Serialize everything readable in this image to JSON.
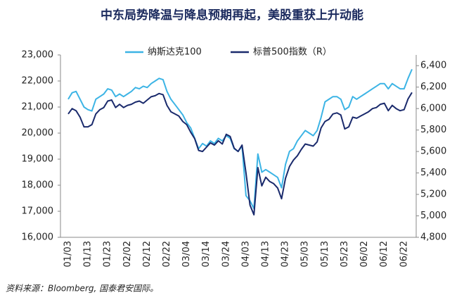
{
  "chart_data": {
    "type": "line",
    "title": "中东局势降温与降息预期再起，美股重获上升动能",
    "source": "资料来源：Bloomberg, 国泰君安国际。",
    "categories": [
      "01/03",
      null,
      null,
      null,
      null,
      "01/13",
      null,
      null,
      null,
      null,
      "01/23",
      null,
      null,
      null,
      null,
      "02/02",
      null,
      null,
      null,
      null,
      "02/12",
      null,
      null,
      null,
      null,
      "02/22",
      null,
      null,
      null,
      null,
      "03/04",
      null,
      null,
      null,
      null,
      "03/14",
      null,
      null,
      null,
      null,
      "03/24",
      null,
      null,
      null,
      null,
      "04/03",
      null,
      null,
      null,
      null,
      "04/13",
      null,
      null,
      null,
      null,
      "04/23",
      null,
      null,
      null,
      null,
      "05/03",
      null,
      null,
      null,
      null,
      "05/13",
      null,
      null,
      null,
      null,
      "05/23",
      null,
      null,
      null,
      null,
      "06/02",
      null,
      null,
      null,
      null,
      "06/12",
      null,
      null,
      null,
      null,
      "06/22",
      null,
      null
    ],
    "series": [
      {
        "name": "纳斯达克100",
        "color": "#3cb4e5",
        "values": [
          21300,
          21550,
          21600,
          21300,
          21000,
          20900,
          20850,
          21300,
          21400,
          21500,
          21700,
          21650,
          21400,
          21500,
          21400,
          21500,
          21600,
          21750,
          21700,
          21800,
          21750,
          21900,
          22000,
          22100,
          22050,
          21600,
          21300,
          21100,
          20900,
          20700,
          20400,
          20200,
          19800,
          19400,
          19600,
          19500,
          19700,
          19600,
          19800,
          19700,
          19900,
          19800,
          19400,
          19300,
          19500,
          17600,
          17400,
          17100,
          19200,
          18500,
          18600,
          18500,
          18400,
          18300,
          17900,
          18800,
          19300,
          19400,
          19700,
          19900,
          20100,
          20000,
          19900,
          20100,
          20600,
          21200,
          21300,
          21400,
          21400,
          21300,
          20900,
          21000,
          21400,
          21300,
          21400,
          21500,
          21600,
          21700,
          21800,
          21900,
          21900,
          21700,
          21900,
          21800,
          21700,
          21700,
          22100,
          22450
        ]
      },
      {
        "name": "标普500指数（R）",
        "color": "#1a2a6c",
        "axis": "y2",
        "values": [
          5950,
          6000,
          5980,
          5920,
          5830,
          5830,
          5850,
          5950,
          5990,
          6010,
          6070,
          6080,
          6010,
          6040,
          6010,
          6030,
          6040,
          6060,
          6070,
          6050,
          6080,
          6110,
          6120,
          6140,
          6130,
          6030,
          5970,
          5950,
          5930,
          5880,
          5850,
          5780,
          5720,
          5610,
          5600,
          5640,
          5680,
          5660,
          5700,
          5670,
          5760,
          5740,
          5630,
          5600,
          5660,
          5400,
          5100,
          5010,
          5450,
          5280,
          5360,
          5320,
          5300,
          5260,
          5160,
          5350,
          5460,
          5520,
          5560,
          5620,
          5670,
          5660,
          5650,
          5690,
          5820,
          5880,
          5900,
          5950,
          5960,
          5940,
          5810,
          5830,
          5920,
          5910,
          5930,
          5950,
          5970,
          6000,
          6010,
          6040,
          6050,
          5980,
          6030,
          6000,
          5980,
          5990,
          6090,
          6150
        ]
      }
    ],
    "ylim": [
      16000,
      23000
    ],
    "yticks": [
      {
        "value": 16000,
        "label": "16,000"
      },
      {
        "value": 17000,
        "label": "17,000"
      },
      {
        "value": 18000,
        "label": "18,000"
      },
      {
        "value": 19000,
        "label": "19,000"
      },
      {
        "value": 20000,
        "label": "20,000"
      },
      {
        "value": 21000,
        "label": "21,000"
      },
      {
        "value": 22000,
        "label": "22,000"
      },
      {
        "value": 23000,
        "label": "23,000"
      }
    ],
    "y2lim": [
      4800,
      6500
    ],
    "y2ticks": [
      {
        "value": 4800,
        "label": "4,800"
      },
      {
        "value": 5000,
        "label": "5,000"
      },
      {
        "value": 5200,
        "label": "5,200"
      },
      {
        "value": 5400,
        "label": "5,400"
      },
      {
        "value": 5600,
        "label": "5,600"
      },
      {
        "value": 5800,
        "label": "5,800"
      },
      {
        "value": 6000,
        "label": "6,000"
      },
      {
        "value": 6200,
        "label": "6,200"
      },
      {
        "value": 6400,
        "label": "6,400"
      }
    ]
  }
}
